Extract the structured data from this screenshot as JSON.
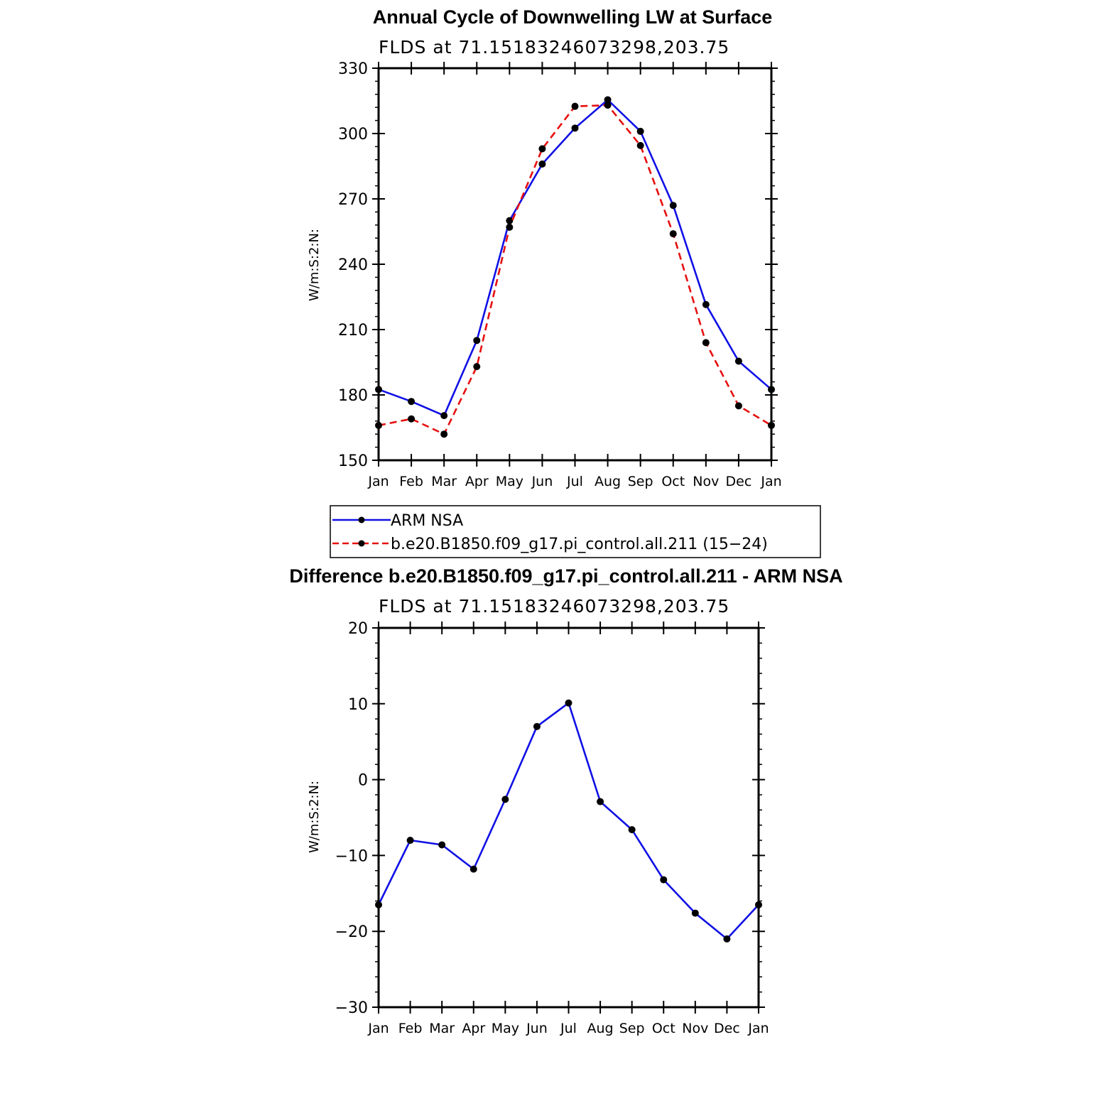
{
  "chart_data": [
    {
      "type": "line",
      "title": "Annual Cycle of Downwelling LW at Surface",
      "subtitle": "FLDS at 71.15183246073298,203.75",
      "ylabel": "W/m:S:2:N:",
      "ylim": [
        150,
        330
      ],
      "yticks": [
        "330",
        "300",
        "270",
        "240",
        "210",
        "180",
        "150"
      ],
      "ytick_values": [
        330,
        300,
        270,
        240,
        210,
        180,
        150
      ],
      "categories": [
        "Jan",
        "Feb",
        "Mar",
        "Apr",
        "May",
        "Jun",
        "Jul",
        "Aug",
        "Sep",
        "Oct",
        "Nov",
        "Dec",
        "Jan"
      ],
      "series": [
        {
          "name": "ARM NSA",
          "color": "#1010e6",
          "dash": "solid",
          "values": [
            182.5,
            177,
            170.5,
            205,
            260,
            286,
            302.5,
            315.5,
            301,
            267,
            221.5,
            195.5,
            182.5
          ]
        },
        {
          "name": "b.e20.B1850.f09_g17.pi_control.all.211 (15−24)",
          "color": "#e61010",
          "dash": "dashed",
          "values": [
            166,
            169,
            162,
            193,
            257,
            293,
            312.5,
            313,
            294.5,
            254,
            204,
            175,
            166
          ]
        }
      ],
      "legend_placement": "below"
    },
    {
      "type": "line",
      "title": "Difference b.e20.B1850.f09_g17.pi_control.all.211 - ARM NSA",
      "subtitle": "FLDS at 71.15183246073298,203.75",
      "ylabel": "W/m:S:2:N:",
      "ylim": [
        -30,
        20
      ],
      "yticks": [
        "20",
        "10",
        "0",
        "−10",
        "−20",
        "−30"
      ],
      "ytick_values": [
        20,
        10,
        0,
        -10,
        -20,
        -30
      ],
      "categories": [
        "Jan",
        "Feb",
        "Mar",
        "Apr",
        "May",
        "Jun",
        "Jul",
        "Aug",
        "Sep",
        "Oct",
        "Nov",
        "Dec",
        "Jan"
      ],
      "series": [
        {
          "color": "#1010e6",
          "dash": "solid",
          "values": [
            -16.5,
            -8,
            -8.6,
            -11.8,
            -2.6,
            7,
            10.1,
            -2.9,
            -6.6,
            -13.2,
            -17.6,
            -21,
            -16.5
          ]
        }
      ]
    }
  ]
}
